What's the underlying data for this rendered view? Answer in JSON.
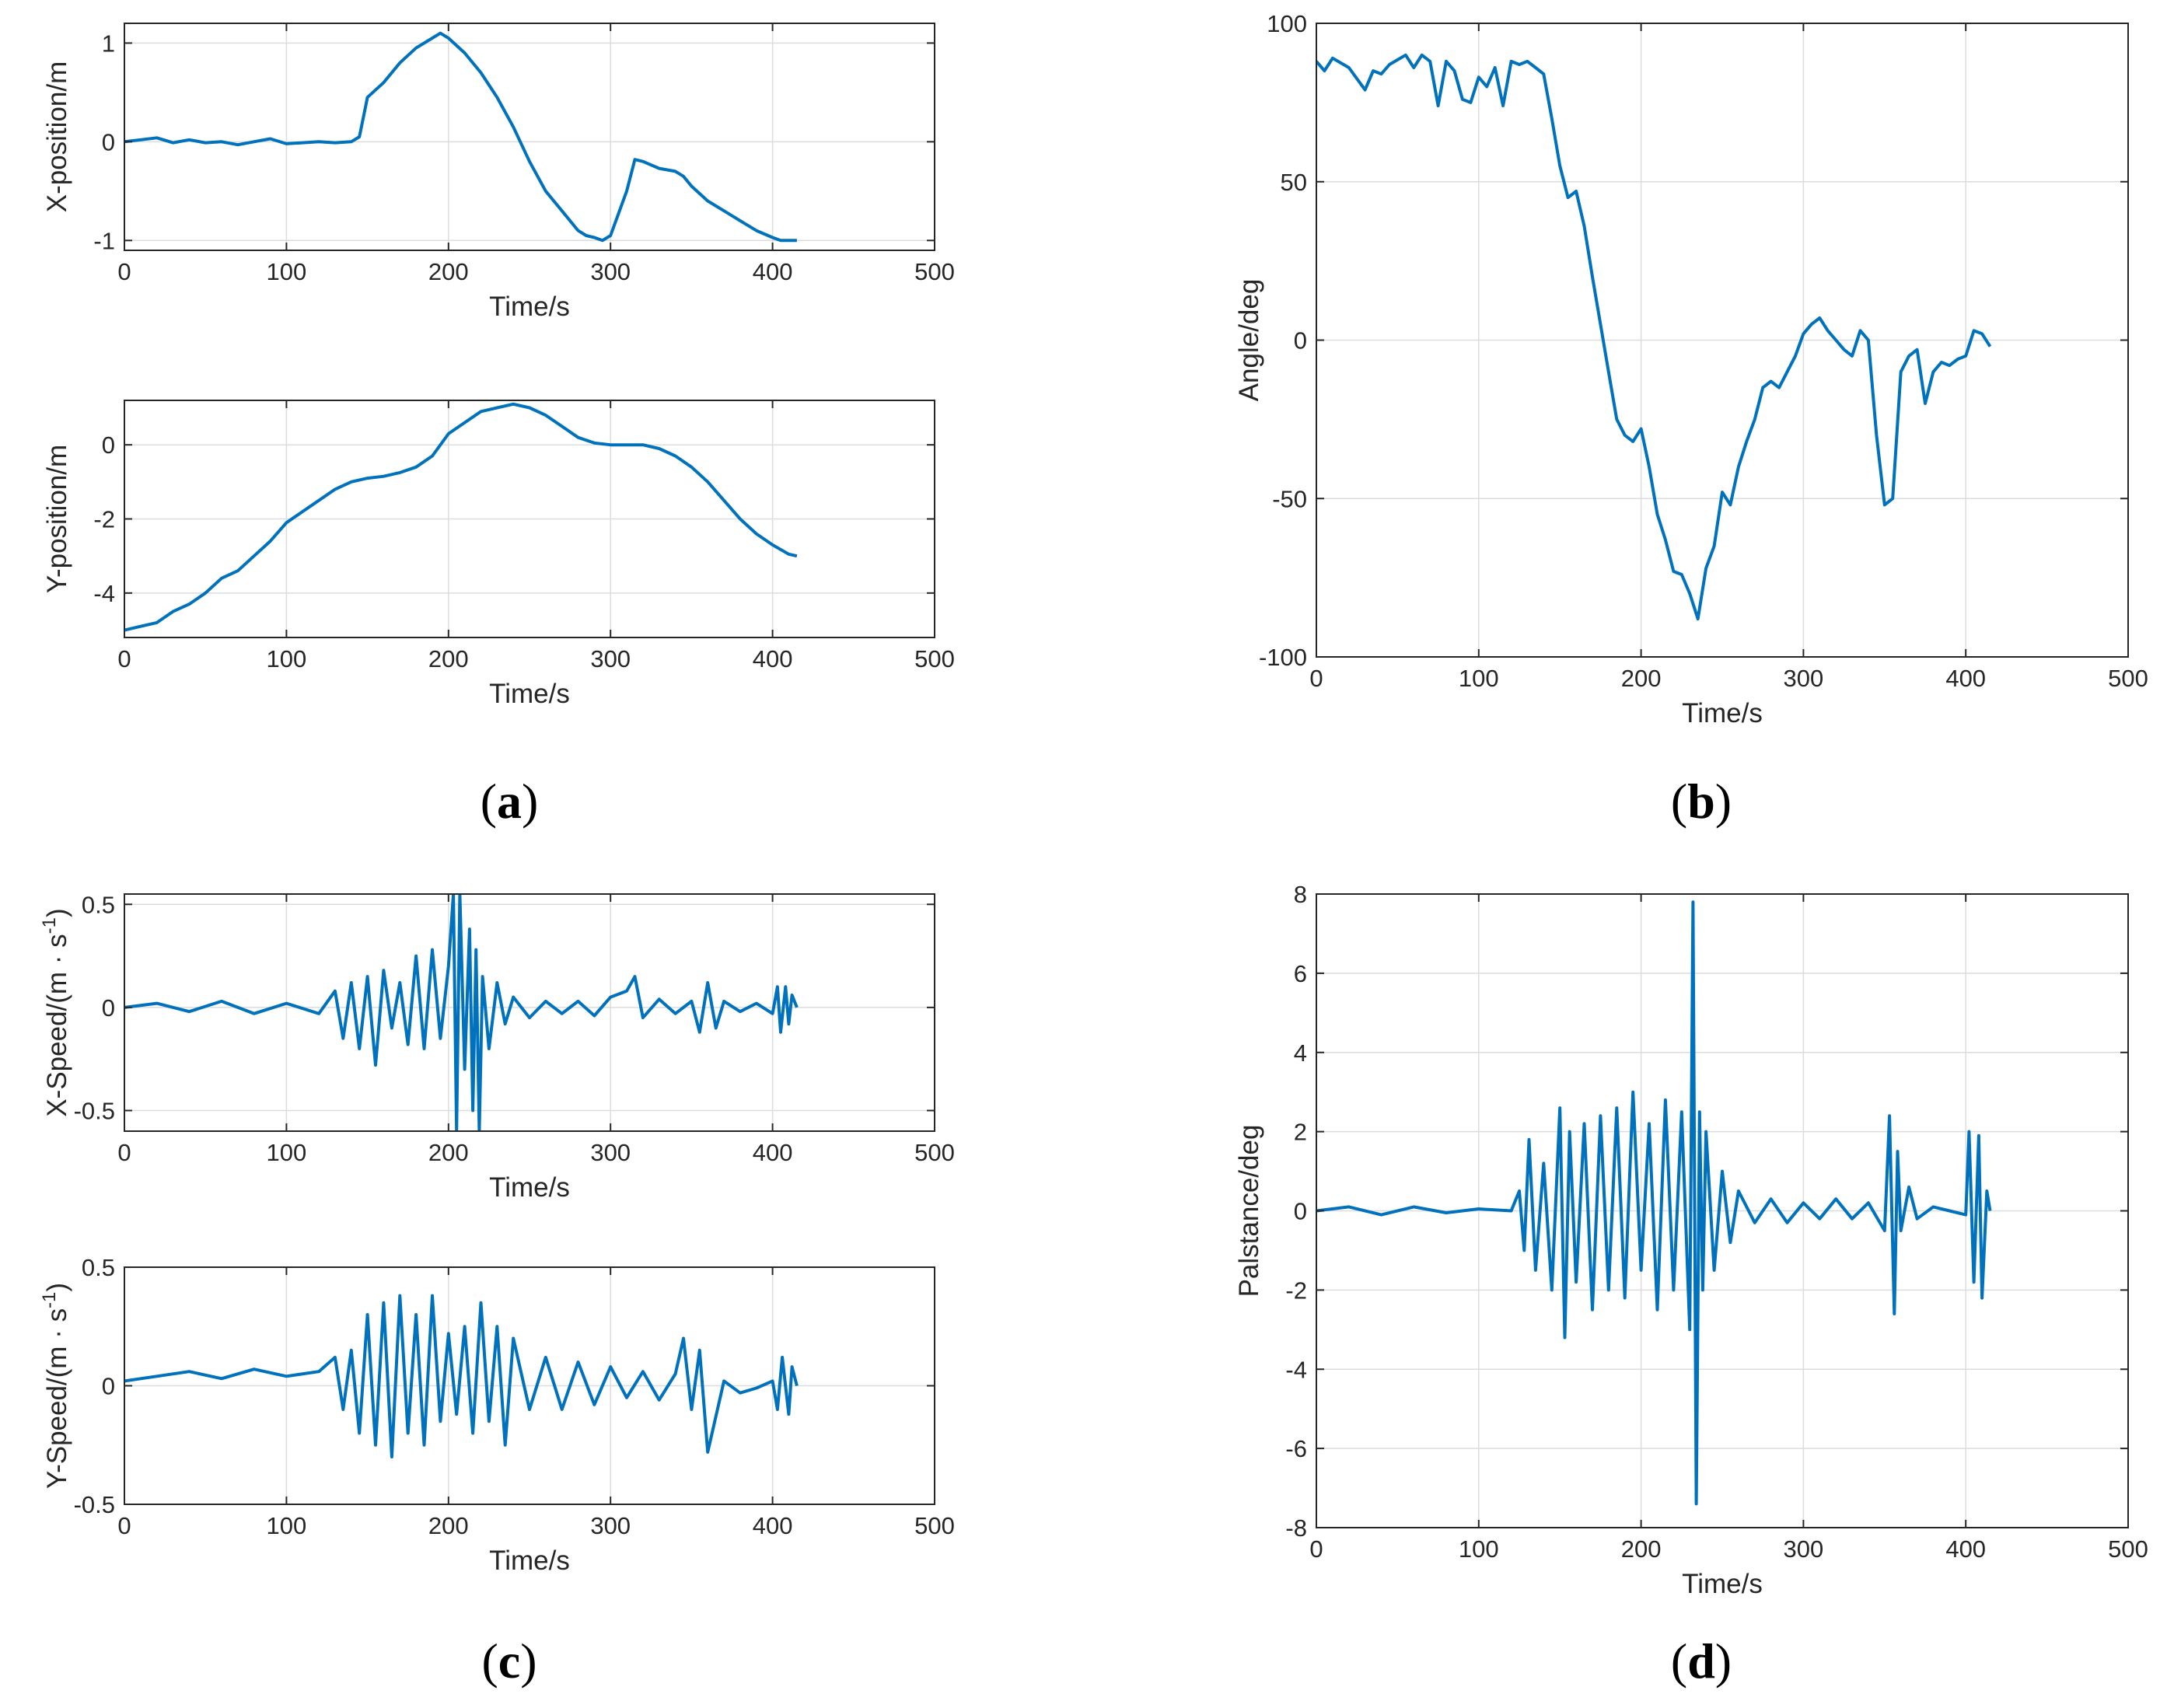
{
  "colors": {
    "line": "#0072BD",
    "grid": "#DCDCDC",
    "axes": "#262626",
    "background": "#FFFFFF"
  },
  "panel_labels": [
    {
      "letter": "a"
    },
    {
      "letter": "b"
    },
    {
      "letter": "c"
    },
    {
      "letter": "d"
    }
  ],
  "chart_data": [
    {
      "id": "x-position",
      "panel": "a",
      "type": "line",
      "xlabel": "Time/s",
      "ylabel": "X-position/m",
      "xlim": [
        0,
        500
      ],
      "ylim": [
        -1.1,
        1.2
      ],
      "xticks": [
        0,
        100,
        200,
        300,
        400,
        500
      ],
      "xtick_labels": [
        "0",
        "100",
        "200",
        "300",
        "400",
        "500"
      ],
      "yticks": [
        -1,
        0,
        1
      ],
      "ytick_labels": [
        "-1",
        "0",
        "1"
      ],
      "grid": true,
      "series": [
        {
          "name": "X-position",
          "x": [
            0,
            10,
            20,
            30,
            40,
            50,
            60,
            70,
            80,
            90,
            100,
            110,
            120,
            130,
            140,
            145,
            150,
            160,
            170,
            180,
            190,
            195,
            200,
            210,
            220,
            230,
            240,
            250,
            260,
            270,
            280,
            285,
            290,
            295,
            300,
            310,
            315,
            320,
            330,
            340,
            345,
            350,
            360,
            370,
            380,
            390,
            400,
            405,
            415
          ],
          "y": [
            0.0,
            0.02,
            0.04,
            -0.01,
            0.02,
            -0.01,
            0.0,
            -0.03,
            0.0,
            0.03,
            -0.02,
            -0.01,
            0.0,
            -0.01,
            0.0,
            0.05,
            0.45,
            0.6,
            0.8,
            0.95,
            1.05,
            1.1,
            1.05,
            0.9,
            0.7,
            0.45,
            0.15,
            -0.2,
            -0.5,
            -0.7,
            -0.9,
            -0.95,
            -0.97,
            -1.0,
            -0.95,
            -0.5,
            -0.18,
            -0.2,
            -0.27,
            -0.3,
            -0.35,
            -0.45,
            -0.6,
            -0.7,
            -0.8,
            -0.9,
            -0.97,
            -1.0,
            -1.0
          ]
        }
      ]
    },
    {
      "id": "y-position",
      "panel": "a",
      "type": "line",
      "xlabel": "Time/s",
      "ylabel": "Y-position/m",
      "xlim": [
        0,
        500
      ],
      "ylim": [
        -5.2,
        1.2
      ],
      "xticks": [
        0,
        100,
        200,
        300,
        400,
        500
      ],
      "xtick_labels": [
        "0",
        "100",
        "200",
        "300",
        "400",
        "500"
      ],
      "yticks": [
        -4,
        -2,
        0
      ],
      "ytick_labels": [
        "-4",
        "-2",
        "0"
      ],
      "grid": true,
      "series": [
        {
          "name": "Y-position",
          "x": [
            0,
            10,
            20,
            30,
            40,
            50,
            60,
            70,
            80,
            90,
            100,
            110,
            120,
            130,
            140,
            150,
            160,
            170,
            180,
            190,
            200,
            210,
            220,
            230,
            240,
            250,
            260,
            270,
            280,
            290,
            300,
            310,
            320,
            330,
            340,
            350,
            360,
            370,
            380,
            390,
            400,
            410,
            415
          ],
          "y": [
            -5.0,
            -4.9,
            -4.8,
            -4.5,
            -4.3,
            -4.0,
            -3.6,
            -3.4,
            -3.0,
            -2.6,
            -2.1,
            -1.8,
            -1.5,
            -1.2,
            -1.0,
            -0.9,
            -0.85,
            -0.75,
            -0.6,
            -0.3,
            0.3,
            0.6,
            0.9,
            1.0,
            1.1,
            1.0,
            0.8,
            0.5,
            0.2,
            0.05,
            0.0,
            0.0,
            0.0,
            -0.1,
            -0.3,
            -0.6,
            -1.0,
            -1.5,
            -2.0,
            -2.4,
            -2.7,
            -2.95,
            -3.0
          ]
        }
      ]
    },
    {
      "id": "angle",
      "panel": "b",
      "type": "line",
      "xlabel": "Time/s",
      "ylabel": "Angle/deg",
      "xlim": [
        0,
        500
      ],
      "ylim": [
        -100,
        100
      ],
      "xticks": [
        0,
        100,
        200,
        300,
        400,
        500
      ],
      "xtick_labels": [
        "0",
        "100",
        "200",
        "300",
        "400",
        "500"
      ],
      "yticks": [
        -100,
        -50,
        0,
        50,
        100
      ],
      "ytick_labels": [
        "-100",
        "-50",
        "0",
        "50",
        "100"
      ],
      "grid": true,
      "series": [
        {
          "name": "Angle",
          "x": [
            0,
            5,
            10,
            20,
            30,
            35,
            40,
            45,
            55,
            60,
            65,
            70,
            75,
            80,
            85,
            90,
            95,
            100,
            105,
            110,
            115,
            120,
            125,
            130,
            135,
            140,
            145,
            150,
            155,
            160,
            165,
            170,
            175,
            180,
            185,
            190,
            195,
            200,
            205,
            210,
            215,
            220,
            225,
            230,
            235,
            240,
            245,
            250,
            255,
            260,
            265,
            270,
            275,
            280,
            285,
            290,
            295,
            300,
            305,
            310,
            315,
            320,
            325,
            330,
            335,
            340,
            345,
            350,
            355,
            360,
            365,
            370,
            375,
            380,
            385,
            390,
            395,
            400,
            405,
            410,
            415
          ],
          "y": [
            88,
            85,
            89,
            86,
            79,
            85,
            84,
            87,
            90,
            86,
            90,
            88,
            74,
            88,
            85,
            76,
            75,
            83,
            80,
            86,
            74,
            88,
            87,
            88,
            86,
            84,
            70,
            55,
            45,
            47,
            36,
            20,
            5,
            -10,
            -25,
            -30,
            -32,
            -28,
            -40,
            -55,
            -63,
            -73,
            -74,
            -80,
            -88,
            -72,
            -65,
            -48,
            -52,
            -40,
            -32,
            -25,
            -15,
            -13,
            -15,
            -10,
            -5,
            2,
            5,
            7,
            3,
            0,
            -3,
            -5,
            3,
            0,
            -30,
            -52,
            -50,
            -10,
            -5,
            -3,
            -20,
            -10,
            -7,
            -8,
            -6,
            -5,
            3,
            2,
            -2
          ]
        }
      ]
    },
    {
      "id": "x-speed",
      "panel": "c",
      "type": "line",
      "xlabel": "Time/s",
      "ylabel_base": "X-Speed/(m · s",
      "ylabel_exp": "-1",
      "ylabel_close": ")",
      "xlim": [
        0,
        500
      ],
      "ylim": [
        -0.6,
        0.55
      ],
      "xticks": [
        0,
        100,
        200,
        300,
        400,
        500
      ],
      "xtick_labels": [
        "0",
        "100",
        "200",
        "300",
        "400",
        "500"
      ],
      "yticks": [
        -0.5,
        0,
        0.5
      ],
      "ytick_labels": [
        "-0.5",
        "0",
        "0.5"
      ],
      "grid": true,
      "series": [
        {
          "name": "X-Speed",
          "x": [
            0,
            20,
            40,
            60,
            80,
            100,
            120,
            130,
            135,
            140,
            145,
            150,
            155,
            160,
            165,
            170,
            175,
            180,
            185,
            190,
            195,
            200,
            203,
            205,
            207,
            210,
            213,
            215,
            217,
            219,
            221,
            225,
            230,
            235,
            240,
            250,
            260,
            270,
            280,
            290,
            300,
            310,
            315,
            320,
            330,
            340,
            350,
            355,
            360,
            365,
            370,
            380,
            390,
            400,
            403,
            405,
            408,
            410,
            412,
            415
          ],
          "y": [
            0.0,
            0.02,
            -0.02,
            0.03,
            -0.03,
            0.02,
            -0.03,
            0.08,
            -0.15,
            0.12,
            -0.2,
            0.15,
            -0.28,
            0.18,
            -0.1,
            0.12,
            -0.18,
            0.25,
            -0.2,
            0.28,
            -0.15,
            0.2,
            0.55,
            -0.6,
            0.55,
            -0.3,
            0.38,
            -0.5,
            0.28,
            -0.6,
            0.15,
            -0.2,
            0.12,
            -0.08,
            0.05,
            -0.05,
            0.03,
            -0.03,
            0.03,
            -0.04,
            0.05,
            0.08,
            0.15,
            -0.05,
            0.04,
            -0.03,
            0.03,
            -0.12,
            0.12,
            -0.1,
            0.03,
            -0.02,
            0.02,
            -0.03,
            0.1,
            -0.12,
            0.1,
            -0.08,
            0.06,
            0.0
          ]
        }
      ]
    },
    {
      "id": "y-speed",
      "panel": "c",
      "type": "line",
      "xlabel": "Time/s",
      "ylabel_base": "Y-Speed/(m · s",
      "ylabel_exp": "-1",
      "ylabel_close": ")",
      "xlim": [
        0,
        500
      ],
      "ylim": [
        -0.5,
        0.5
      ],
      "xticks": [
        0,
        100,
        200,
        300,
        400,
        500
      ],
      "xtick_labels": [
        "0",
        "100",
        "200",
        "300",
        "400",
        "500"
      ],
      "yticks": [
        -0.5,
        0,
        0.5
      ],
      "ytick_labels": [
        "-0.5",
        "0",
        "0.5"
      ],
      "grid": true,
      "series": [
        {
          "name": "Y-Speed",
          "x": [
            0,
            20,
            40,
            60,
            80,
            100,
            120,
            130,
            135,
            140,
            145,
            150,
            155,
            160,
            165,
            170,
            175,
            180,
            185,
            190,
            195,
            200,
            205,
            210,
            215,
            220,
            225,
            230,
            235,
            240,
            250,
            260,
            270,
            280,
            290,
            300,
            310,
            320,
            330,
            340,
            345,
            350,
            355,
            360,
            370,
            380,
            390,
            400,
            403,
            406,
            410,
            412,
            415
          ],
          "y": [
            0.02,
            0.04,
            0.06,
            0.03,
            0.07,
            0.04,
            0.06,
            0.12,
            -0.1,
            0.15,
            -0.2,
            0.3,
            -0.25,
            0.35,
            -0.3,
            0.38,
            -0.2,
            0.3,
            -0.25,
            0.38,
            -0.15,
            0.22,
            -0.12,
            0.25,
            -0.2,
            0.35,
            -0.15,
            0.25,
            -0.25,
            0.2,
            -0.1,
            0.12,
            -0.1,
            0.1,
            -0.08,
            0.08,
            -0.05,
            0.06,
            -0.06,
            0.05,
            0.2,
            -0.1,
            0.15,
            -0.28,
            0.02,
            -0.03,
            -0.01,
            0.02,
            -0.1,
            0.12,
            -0.12,
            0.08,
            0.0
          ]
        }
      ]
    },
    {
      "id": "palstance",
      "panel": "d",
      "type": "line",
      "xlabel": "Time/s",
      "ylabel": "Palstance/deg",
      "xlim": [
        0,
        500
      ],
      "ylim": [
        -8,
        8
      ],
      "xticks": [
        0,
        100,
        200,
        300,
        400,
        500
      ],
      "xtick_labels": [
        "0",
        "100",
        "200",
        "300",
        "400",
        "500"
      ],
      "yticks": [
        -8,
        -6,
        -4,
        -2,
        0,
        2,
        4,
        6,
        8
      ],
      "ytick_labels": [
        "-8",
        "-6",
        "-4",
        "-2",
        "0",
        "2",
        "4",
        "6",
        "8"
      ],
      "grid": true,
      "series": [
        {
          "name": "Palstance",
          "x": [
            0,
            20,
            40,
            60,
            80,
            100,
            120,
            125,
            128,
            131,
            135,
            140,
            145,
            150,
            153,
            156,
            160,
            165,
            170,
            175,
            180,
            185,
            190,
            195,
            200,
            205,
            210,
            215,
            220,
            225,
            230,
            232,
            234,
            236,
            238,
            240,
            245,
            250,
            255,
            260,
            270,
            280,
            290,
            300,
            310,
            320,
            330,
            340,
            350,
            353,
            356,
            358,
            360,
            365,
            370,
            380,
            390,
            400,
            402,
            405,
            408,
            410,
            413,
            415
          ],
          "y": [
            0.0,
            0.1,
            -0.1,
            0.1,
            -0.05,
            0.05,
            0.0,
            0.5,
            -1.0,
            1.8,
            -1.5,
            1.2,
            -2.0,
            2.6,
            -3.2,
            2.0,
            -1.8,
            2.2,
            -2.5,
            2.4,
            -2.0,
            2.6,
            -2.2,
            3.0,
            -1.5,
            2.2,
            -2.5,
            2.8,
            -2.0,
            2.5,
            -3.0,
            7.8,
            -7.4,
            2.5,
            -2.0,
            2.0,
            -1.5,
            1.0,
            -0.8,
            0.5,
            -0.3,
            0.3,
            -0.3,
            0.2,
            -0.2,
            0.3,
            -0.2,
            0.2,
            -0.5,
            2.4,
            -2.6,
            1.5,
            -0.5,
            0.6,
            -0.2,
            0.1,
            0.0,
            -0.1,
            2.0,
            -1.8,
            1.9,
            -2.2,
            0.5,
            0.0
          ]
        }
      ]
    }
  ]
}
